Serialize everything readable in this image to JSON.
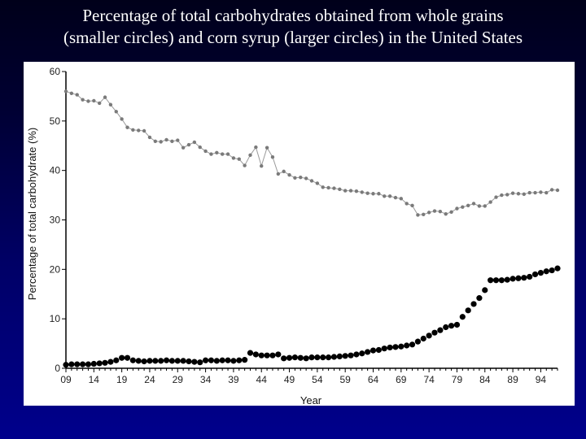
{
  "title_line1": "Percentage of total carbohydrates obtained from whole grains",
  "title_line2": "(smaller circles) and corn syrup (larger circles) in the United States",
  "chart_data": {
    "type": "scatter",
    "xlabel": "Year",
    "ylabel": "Percentage of total carbohydrate (%)",
    "xlim": [
      1909,
      1997
    ],
    "ylim": [
      0,
      60
    ],
    "x_ticks": [
      "09",
      "14",
      "19",
      "24",
      "29",
      "34",
      "39",
      "44",
      "49",
      "54",
      "59",
      "64",
      "69",
      "74",
      "79",
      "84",
      "89",
      "94"
    ],
    "y_ticks": [
      0,
      10,
      20,
      30,
      40,
      50,
      60
    ],
    "series": [
      {
        "marker": "small circles connected by line",
        "color": "#7a7a7a",
        "x": [
          1909,
          1910,
          1911,
          1912,
          1913,
          1914,
          1915,
          1916,
          1917,
          1918,
          1919,
          1920,
          1921,
          1922,
          1923,
          1924,
          1925,
          1926,
          1927,
          1928,
          1929,
          1930,
          1931,
          1932,
          1933,
          1934,
          1935,
          1936,
          1937,
          1938,
          1939,
          1940,
          1941,
          1942,
          1943,
          1944,
          1945,
          1946,
          1947,
          1948,
          1949,
          1950,
          1951,
          1952,
          1953,
          1954,
          1955,
          1956,
          1957,
          1958,
          1959,
          1960,
          1961,
          1962,
          1963,
          1964,
          1965,
          1966,
          1967,
          1968,
          1969,
          1970,
          1971,
          1972,
          1973,
          1974,
          1975,
          1976,
          1977,
          1978,
          1979,
          1980,
          1981,
          1982,
          1983,
          1984,
          1985,
          1986,
          1987,
          1988,
          1989,
          1990,
          1991,
          1992,
          1993,
          1994,
          1995,
          1996,
          1997
        ],
        "y": [
          56,
          55.6,
          55.3,
          54.3,
          54,
          54.1,
          53.6,
          54.8,
          53.3,
          51.9,
          50.4,
          48.7,
          48.2,
          48.1,
          48,
          46.7,
          45.9,
          45.8,
          46.2,
          45.9,
          46.1,
          44.6,
          45.2,
          45.7,
          44.7,
          43.9,
          43.3,
          43.6,
          43.3,
          43.3,
          42.5,
          42.3,
          41,
          43.1,
          44.7,
          40.9,
          44.6,
          42.7,
          39.3,
          39.8,
          39.1,
          38.5,
          38.6,
          38.4,
          37.9,
          37.4,
          36.6,
          36.5,
          36.4,
          36.2,
          35.9,
          35.9,
          35.8,
          35.6,
          35.4,
          35.3,
          35.3,
          34.8,
          34.8,
          34.5,
          34.3,
          33.3,
          32.9,
          31,
          31.1,
          31.5,
          31.8,
          31.7,
          31.2,
          31.6,
          32.3,
          32.6,
          32.9,
          33.3,
          32.8,
          32.8,
          33.6,
          34.6,
          35,
          35.1,
          35.4,
          35.3,
          35.2,
          35.5,
          35.5,
          35.6,
          35.5,
          36.1,
          36
        ]
      },
      {
        "marker": "large filled circles",
        "color": "#000000",
        "x": [
          1909,
          1910,
          1911,
          1912,
          1913,
          1914,
          1915,
          1916,
          1917,
          1918,
          1919,
          1920,
          1921,
          1922,
          1923,
          1924,
          1925,
          1926,
          1927,
          1928,
          1929,
          1930,
          1931,
          1932,
          1933,
          1934,
          1935,
          1936,
          1937,
          1938,
          1939,
          1940,
          1941,
          1942,
          1943,
          1944,
          1945,
          1946,
          1947,
          1948,
          1949,
          1950,
          1951,
          1952,
          1953,
          1954,
          1955,
          1956,
          1957,
          1958,
          1959,
          1960,
          1961,
          1962,
          1963,
          1964,
          1965,
          1966,
          1967,
          1968,
          1969,
          1970,
          1971,
          1972,
          1973,
          1974,
          1975,
          1976,
          1977,
          1978,
          1979,
          1980,
          1981,
          1982,
          1983,
          1984,
          1985,
          1986,
          1987,
          1988,
          1989,
          1990,
          1991,
          1992,
          1993,
          1994,
          1995,
          1996,
          1997
        ],
        "y": [
          0.7,
          0.8,
          0.8,
          0.8,
          0.8,
          0.9,
          1,
          1.1,
          1.3,
          1.6,
          2.1,
          2.1,
          1.6,
          1.5,
          1.4,
          1.5,
          1.5,
          1.5,
          1.6,
          1.5,
          1.5,
          1.5,
          1.4,
          1.3,
          1.2,
          1.6,
          1.6,
          1.5,
          1.6,
          1.6,
          1.5,
          1.6,
          1.7,
          3.1,
          2.8,
          2.6,
          2.6,
          2.6,
          2.8,
          2,
          2.1,
          2.2,
          2.1,
          2,
          2.2,
          2.2,
          2.2,
          2.2,
          2.3,
          2.4,
          2.5,
          2.6,
          2.8,
          3,
          3.3,
          3.6,
          3.7,
          4,
          4.2,
          4.3,
          4.4,
          4.6,
          4.8,
          5.4,
          6,
          6.6,
          7.2,
          7.7,
          8.3,
          8.6,
          8.8,
          10.4,
          11.7,
          13,
          14.2,
          15.8,
          17.8,
          17.8,
          17.8,
          17.9,
          18.1,
          18.2,
          18.3,
          18.5,
          19,
          19.3,
          19.6,
          19.8,
          20.2
        ]
      }
    ]
  }
}
